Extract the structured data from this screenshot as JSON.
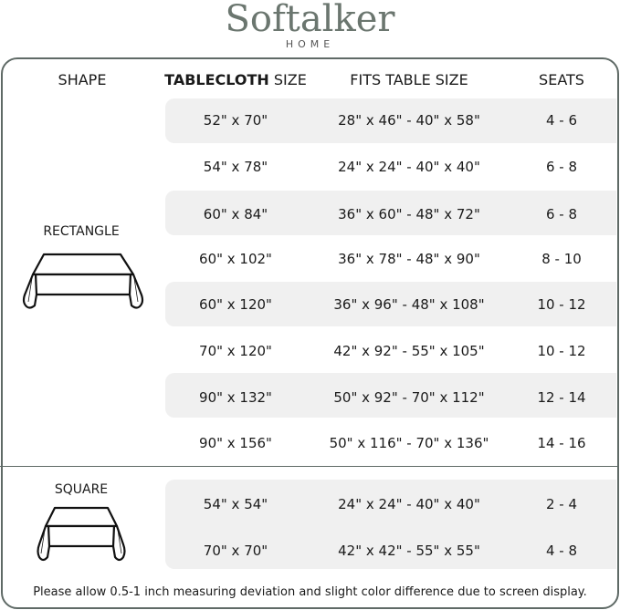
{
  "brand": {
    "name": "Softalker",
    "sub": "HOME",
    "color": "#6b766f"
  },
  "headers": {
    "shape": "SHAPE",
    "tablecloth_bold": "TABLECLOTH",
    "tablecloth_rest": "SIZE",
    "fits": "FITS TABLE SIZE",
    "seats": "SEATS"
  },
  "sections": [
    {
      "shape": "RECTANGLE",
      "icon": "tablecloth-rectangle-icon",
      "rows": [
        {
          "size": "52\" x 70\"",
          "fits": "28\" x 46\" - 40\" x 58\"",
          "seats": "4 - 6"
        },
        {
          "size": "54\" x 78\"",
          "fits": "24\" x 24\" - 40\" x 40\"",
          "seats": "6 - 8"
        },
        {
          "size": "60\" x 84\"",
          "fits": "36\" x 60\" - 48\" x 72\"",
          "seats": "6 - 8"
        },
        {
          "size": "60\" x 102\"",
          "fits": "36\" x 78\" - 48\" x 90\"",
          "seats": "8 - 10"
        },
        {
          "size": "60\" x 120\"",
          "fits": "36\" x 96\" - 48\" x 108\"",
          "seats": "10 - 12"
        },
        {
          "size": "70\" x 120\"",
          "fits": "42\" x 92\" - 55\" x 105\"",
          "seats": "10 - 12"
        },
        {
          "size": "90\" x 132\"",
          "fits": "50\" x 92\" - 70\" x 112\"",
          "seats": "12 - 14"
        },
        {
          "size": "90\" x 156\"",
          "fits": "50\" x 116\" - 70\" x 136\"",
          "seats": "14 - 16"
        }
      ]
    },
    {
      "shape": "SQUARE",
      "icon": "tablecloth-square-icon",
      "rows": [
        {
          "size": "54\" x 54\"",
          "fits": "24\" x 24\" - 40\" x 40\"",
          "seats": "2 - 4"
        },
        {
          "size": "70\" x 70\"",
          "fits": "42\" x 42\" - 55\" x 55\"",
          "seats": "4 - 8"
        }
      ]
    }
  ],
  "note": "Please allow 0.5-1 inch measuring deviation and slight color difference due to screen display.",
  "colors": {
    "frame": "#5f6a66",
    "band": "#f0f0f0"
  }
}
